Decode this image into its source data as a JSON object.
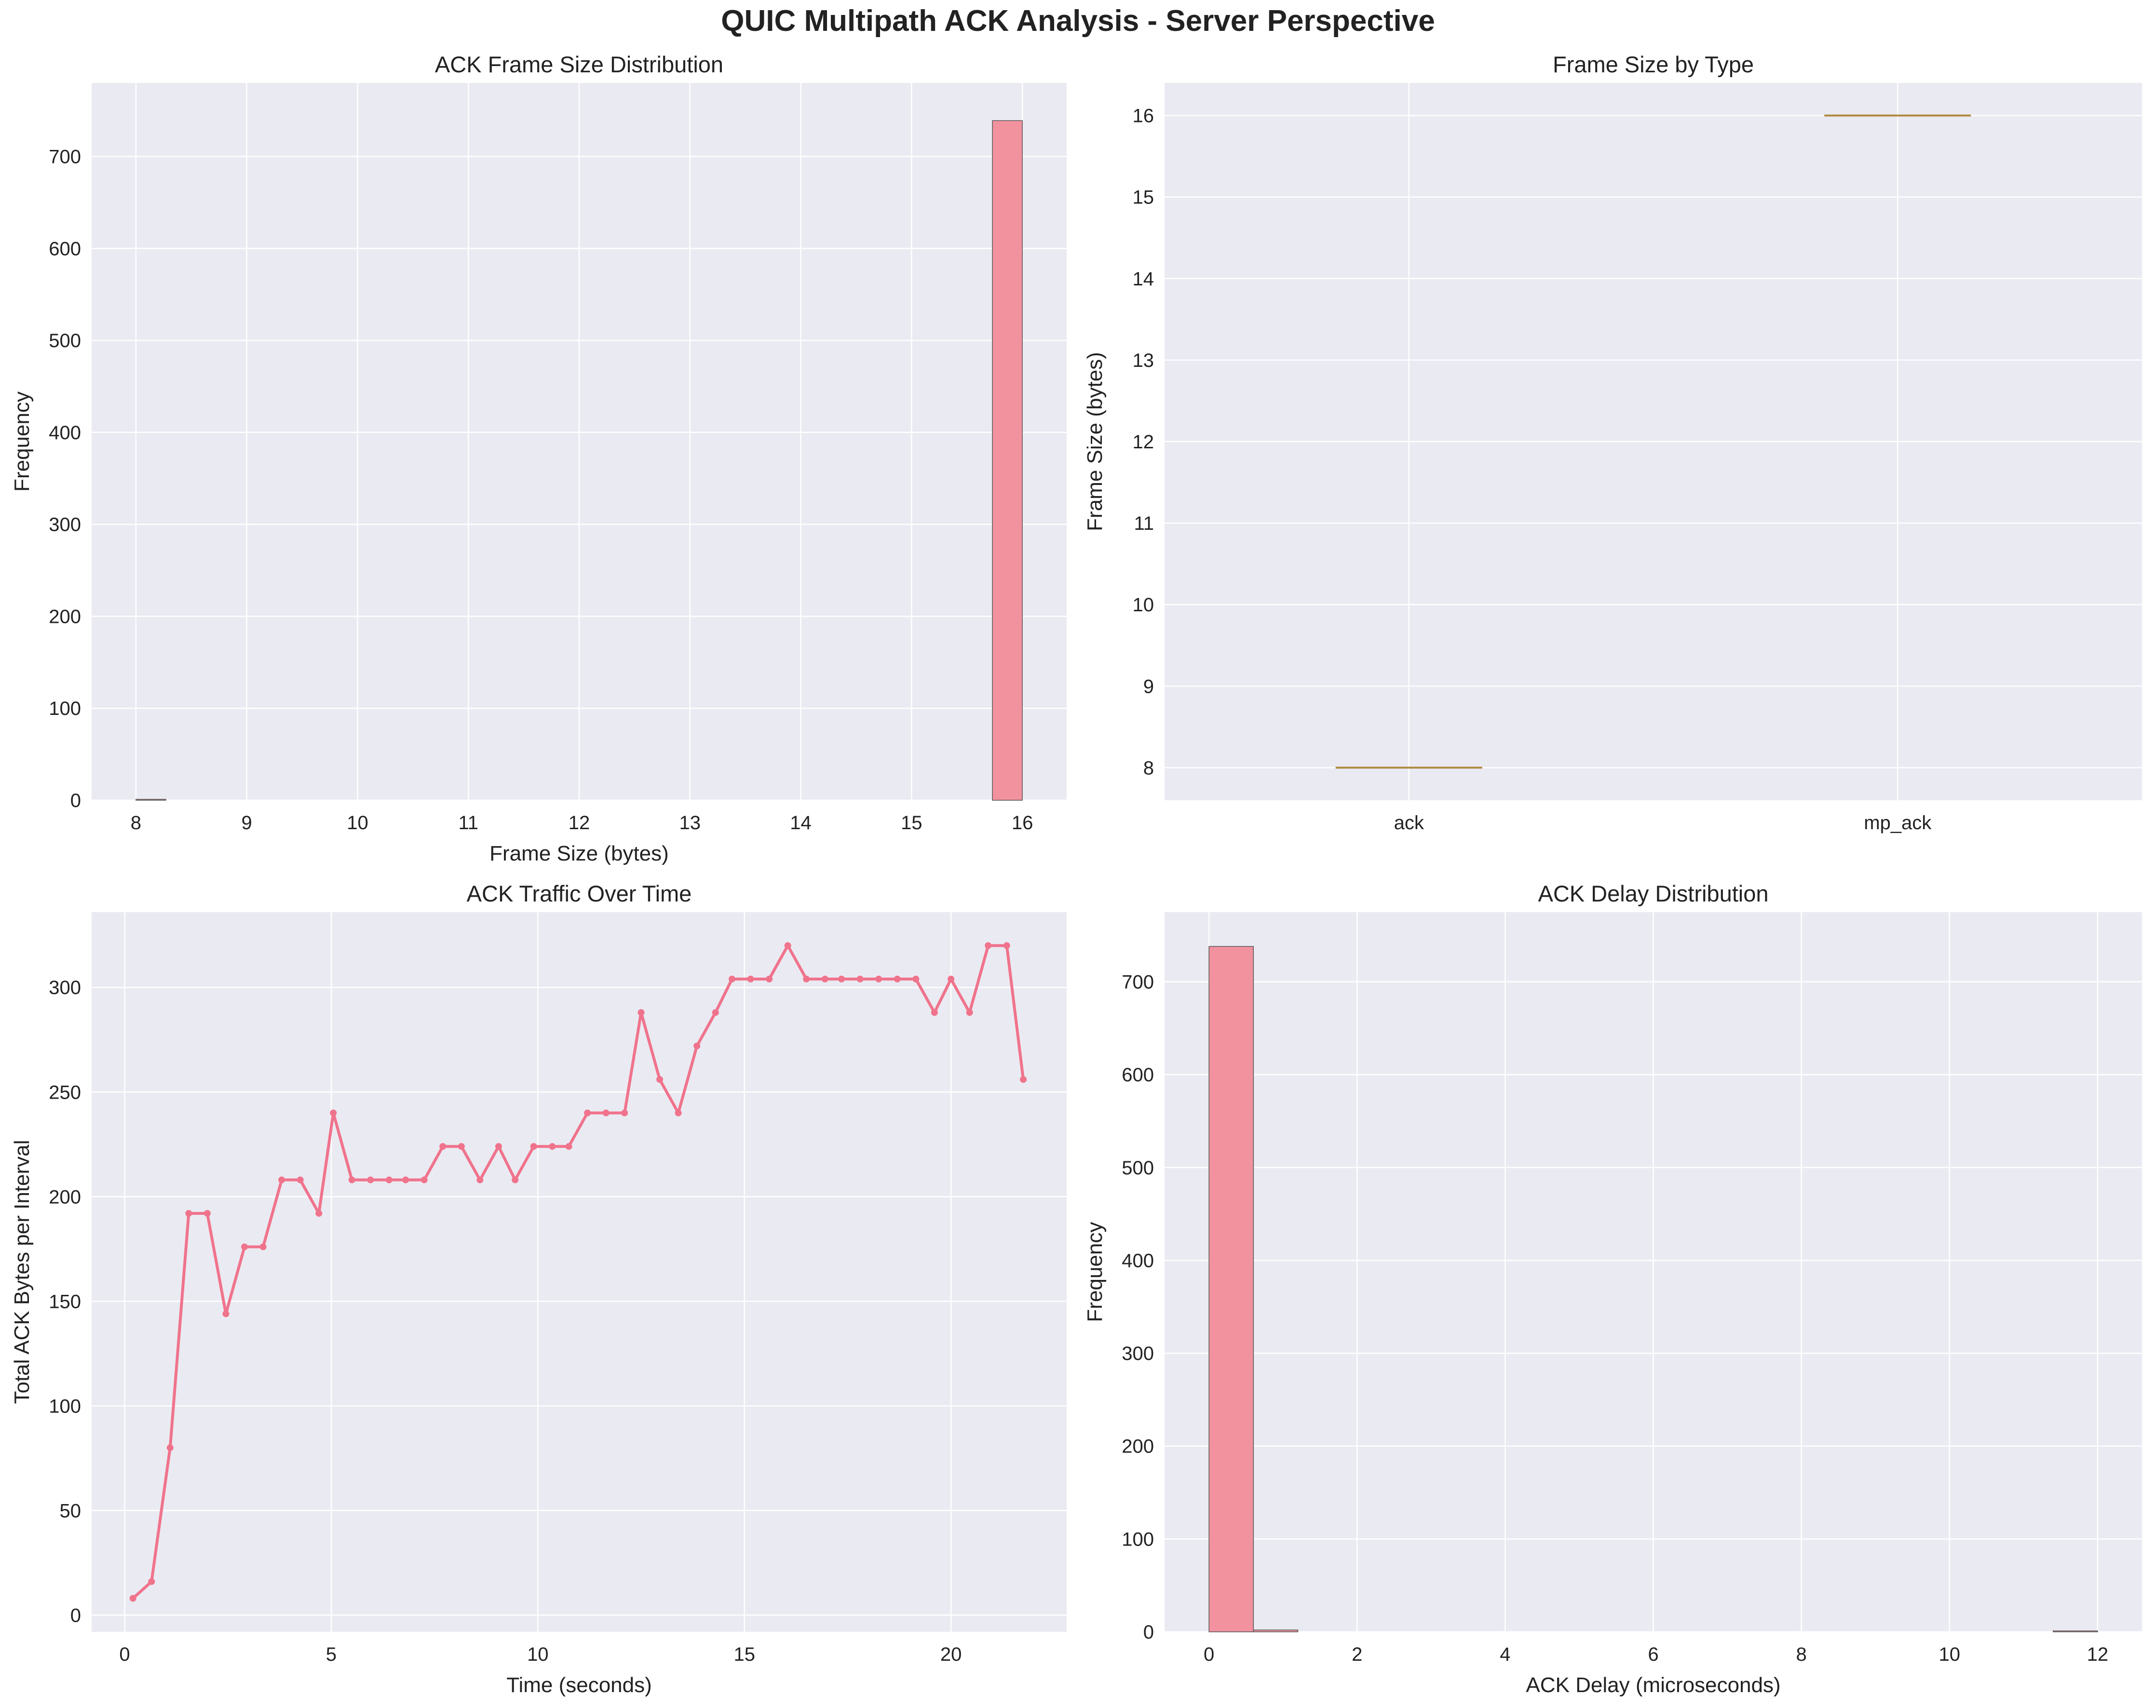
{
  "figure_title": "QUIC Multipath ACK Analysis - Server Perspective",
  "colors": {
    "series": "#f0738c",
    "bar_fill": "#f2929f",
    "bar_edge": "#555555",
    "box_median": "#b08a3e",
    "plot_bg": "#eaeaf2",
    "grid": "#ffffff"
  },
  "chart_data": [
    {
      "type": "bar",
      "title": "ACK Frame Size Distribution",
      "xlabel": "Frame Size (bytes)",
      "ylabel": "Frequency",
      "xlim": [
        7.6,
        16.4
      ],
      "ylim": [
        0,
        780
      ],
      "xticks": [
        8,
        9,
        10,
        11,
        12,
        13,
        14,
        15,
        16
      ],
      "yticks": [
        0,
        100,
        200,
        300,
        400,
        500,
        600,
        700
      ],
      "bins": [
        {
          "x0": 8.0,
          "x1": 8.27,
          "count": 1
        },
        {
          "x0": 15.73,
          "x1": 16.0,
          "count": 739
        }
      ],
      "grid": true
    },
    {
      "type": "box",
      "title": "Frame Size by Type",
      "xlabel": "",
      "ylabel": "Frame Size (bytes)",
      "categories": [
        "ack",
        "mp_ack"
      ],
      "medians": [
        8,
        16
      ],
      "ylim": [
        7.6,
        16.4
      ],
      "yticks": [
        8,
        9,
        10,
        11,
        12,
        13,
        14,
        15,
        16
      ],
      "grid": true
    },
    {
      "type": "line",
      "title": "ACK Traffic Over Time",
      "xlabel": "Time (seconds)",
      "ylabel": "Total ACK Bytes per Interval",
      "xlim": [
        -0.8,
        22.8
      ],
      "ylim": [
        -8,
        336
      ],
      "xticks": [
        0,
        5,
        10,
        15,
        20
      ],
      "yticks": [
        0,
        50,
        100,
        150,
        200,
        250,
        300
      ],
      "x": [
        0.2,
        0.65,
        1.1,
        1.55,
        2.0,
        2.45,
        2.9,
        3.35,
        3.8,
        4.25,
        4.7,
        5.05,
        5.5,
        5.95,
        6.4,
        6.8,
        7.25,
        7.7,
        8.15,
        8.6,
        9.05,
        9.45,
        9.9,
        10.35,
        10.75,
        11.2,
        11.65,
        12.1,
        12.5,
        12.95,
        13.4,
        13.85,
        14.3,
        14.7,
        15.15,
        15.6,
        16.05,
        16.5,
        16.95,
        17.35,
        17.8,
        18.25,
        18.7,
        19.15,
        19.6,
        20.0,
        20.45,
        20.9,
        21.35,
        21.75
      ],
      "y": [
        8,
        16,
        80,
        192,
        192,
        144,
        176,
        176,
        208,
        208,
        192,
        240,
        208,
        208,
        208,
        208,
        208,
        224,
        224,
        208,
        224,
        208,
        224,
        224,
        224,
        240,
        240,
        240,
        288,
        256,
        240,
        272,
        288,
        304,
        304,
        304,
        320,
        304,
        304,
        304,
        304,
        304,
        304,
        304,
        288,
        304,
        288,
        320,
        320,
        256
      ],
      "grid": true
    },
    {
      "type": "bar",
      "title": "ACK Delay Distribution",
      "xlabel": "ACK Delay (microseconds)",
      "ylabel": "Frequency",
      "xlim": [
        -0.6,
        12.6
      ],
      "ylim": [
        0,
        775
      ],
      "xticks": [
        0,
        2,
        4,
        6,
        8,
        10,
        12
      ],
      "yticks": [
        0,
        100,
        200,
        300,
        400,
        500,
        600,
        700
      ],
      "bins": [
        {
          "x0": 0.0,
          "x1": 0.6,
          "count": 738
        },
        {
          "x0": 0.6,
          "x1": 1.2,
          "count": 2
        },
        {
          "x0": 11.4,
          "x1": 12.0,
          "count": 1
        }
      ],
      "grid": true
    }
  ]
}
